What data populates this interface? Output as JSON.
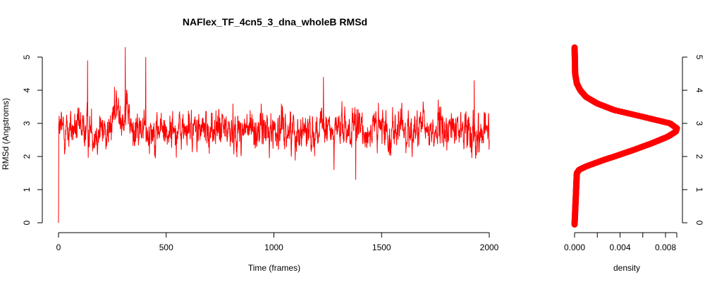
{
  "chart_data": [
    {
      "type": "line",
      "title": "NAFlex_TF_4cn5_3_dna_wholeB RMSd",
      "xlabel": "Time (frames)",
      "ylabel": "RMSd (Angstroms)",
      "xlim": [
        0,
        2000
      ],
      "ylim": [
        0,
        5.3
      ],
      "x_ticks": [
        "0",
        "500",
        "1000",
        "1500",
        "2000"
      ],
      "y_ticks": [
        "0",
        "1",
        "2",
        "3",
        "4",
        "5"
      ],
      "color": "#ff0000",
      "grid": false,
      "legend": "none",
      "series": [
        {
          "x_range": [
            0,
            2000
          ],
          "n_points": 2001,
          "start_value": 0.0,
          "typical_mean": 2.8,
          "typical_range": [
            1.6,
            3.9
          ],
          "notable_values": [
            {
              "x": 135,
              "y": 4.9
            },
            {
              "x": 260,
              "y": 4.1
            },
            {
              "x": 310,
              "y": 5.3
            },
            {
              "x": 405,
              "y": 5.0
            },
            {
              "x": 1230,
              "y": 4.4
            },
            {
              "x": 1380,
              "y": 1.3
            },
            {
              "x": 1930,
              "y": 4.3
            }
          ]
        }
      ]
    },
    {
      "type": "area",
      "xlabel": "density",
      "ylabel": "",
      "xlim": [
        0,
        0.009
      ],
      "ylim": [
        0,
        5.3
      ],
      "x_ticks": [
        "0.000",
        "0.004",
        "0.008"
      ],
      "y_ticks": [
        "0",
        "1",
        "2",
        "3",
        "4",
        "5"
      ],
      "color": "#ff0000",
      "orientation": "horizontal",
      "peak": {
        "y": 2.85,
        "density": 0.009
      },
      "shape": [
        {
          "y": -0.05,
          "density": 0.0
        },
        {
          "y": 1.5,
          "density": 0.0002
        },
        {
          "y": 1.6,
          "density": 0.0004
        },
        {
          "y": 1.7,
          "density": 0.001
        },
        {
          "y": 1.8,
          "density": 0.0018
        },
        {
          "y": 1.9,
          "density": 0.0026
        },
        {
          "y": 2.0,
          "density": 0.0035
        },
        {
          "y": 2.2,
          "density": 0.0052
        },
        {
          "y": 2.4,
          "density": 0.0068
        },
        {
          "y": 2.6,
          "density": 0.0082
        },
        {
          "y": 2.75,
          "density": 0.0089
        },
        {
          "y": 2.85,
          "density": 0.009
        },
        {
          "y": 3.0,
          "density": 0.0084
        },
        {
          "y": 3.2,
          "density": 0.006
        },
        {
          "y": 3.4,
          "density": 0.0035
        },
        {
          "y": 3.6,
          "density": 0.002
        },
        {
          "y": 3.8,
          "density": 0.001
        },
        {
          "y": 4.0,
          "density": 0.0005
        },
        {
          "y": 4.2,
          "density": 0.0002
        },
        {
          "y": 4.5,
          "density": 5e-05
        },
        {
          "y": 5.0,
          "density": 2e-05
        },
        {
          "y": 5.3,
          "density": 0.0
        }
      ]
    }
  ]
}
